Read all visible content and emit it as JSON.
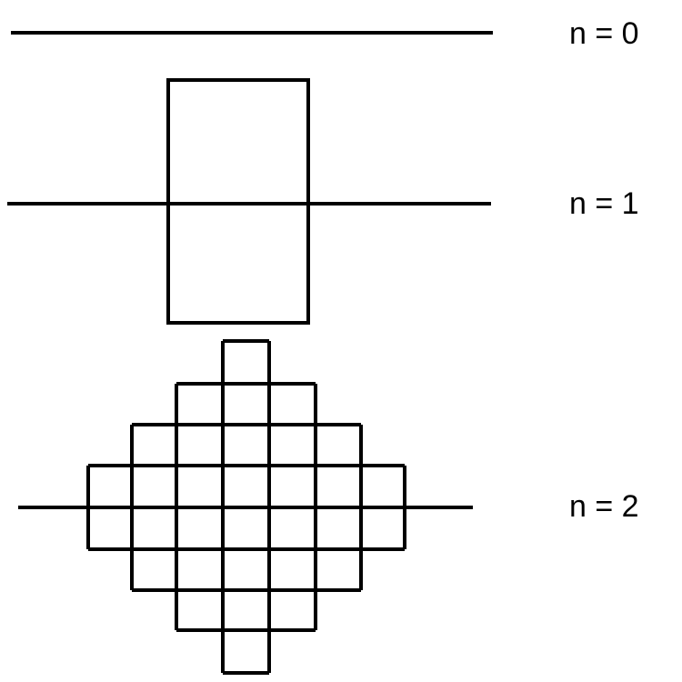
{
  "colors": {
    "background": "#ffffff",
    "stroke": "#000000"
  },
  "stages": [
    {
      "label": "n = 0"
    },
    {
      "label": "n = 1"
    },
    {
      "label": "n = 2"
    }
  ]
}
